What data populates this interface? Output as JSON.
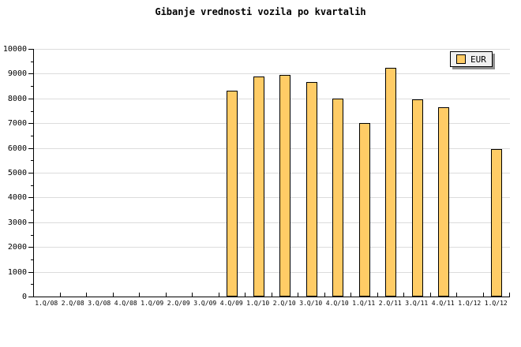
{
  "chart_data": {
    "type": "bar",
    "title": "Gibanje vrednosti vozila po kvartalih",
    "categories": [
      "1.Q/08",
      "2.Q/08",
      "3.Q/08",
      "4.Q/08",
      "1.Q/09",
      "2.Q/09",
      "3.Q/09",
      "4.Q/09",
      "1.Q/10",
      "2.Q/10",
      "3.Q/10",
      "4.Q/10",
      "1.Q/11",
      "2.Q/11",
      "3.Q/11",
      "4.Q/11",
      "1.Q/12",
      "1.Q/12"
    ],
    "series": [
      {
        "name": "EUR",
        "values": [
          null,
          null,
          null,
          null,
          null,
          null,
          null,
          8300,
          8900,
          8950,
          8650,
          8000,
          7000,
          9250,
          7950,
          7650,
          null,
          5950
        ]
      }
    ],
    "ylim": [
      0,
      10000
    ],
    "ytick_step": 1000,
    "ytick_minor_step": 500,
    "grid": "horizontal-major",
    "legend_position": "top-right",
    "colors": {
      "bar_fill": "#FFCC66",
      "bar_border": "#000000",
      "grid": "#DCDCDC",
      "axis": "#000000",
      "legend_bg": "#F0F0F0",
      "legend_shadow": "#8F8F8F",
      "background": "#FFFFFF"
    }
  }
}
